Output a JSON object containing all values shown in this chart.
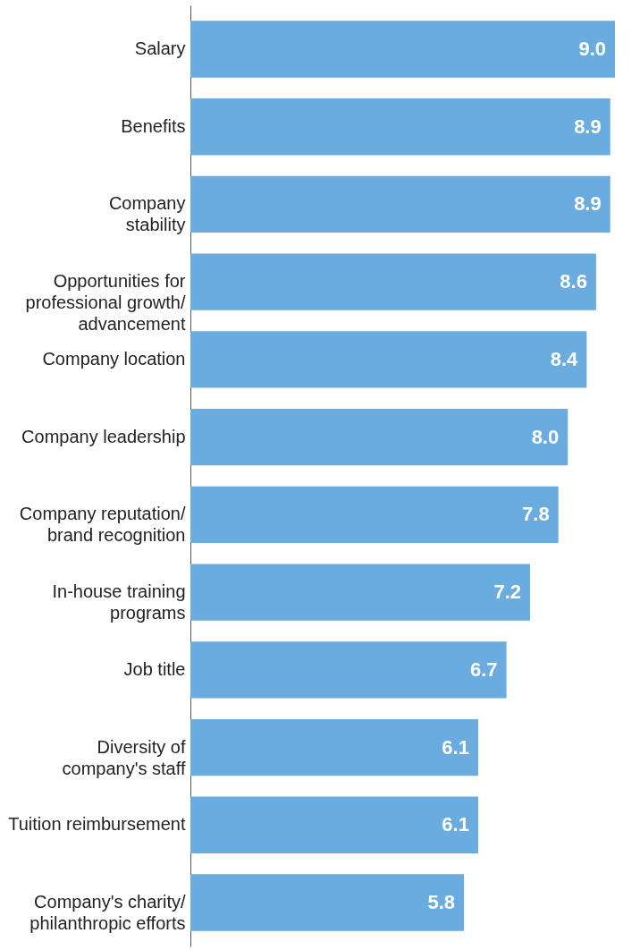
{
  "chart_data": {
    "type": "bar",
    "orientation": "horizontal",
    "categories": [
      "Salary",
      "Benefits",
      "Company\nstability",
      "Opportunities for\nprofessional growth/\nadvancement",
      "Company location",
      "Company leadership",
      "Company reputation/\nbrand recognition",
      "In-house training\nprograms",
      "Job title",
      "Diversity of\ncompany's staff",
      "Tuition reimbursement",
      "Company's charity/\nphilanthropic efforts"
    ],
    "values": [
      9.0,
      8.9,
      8.9,
      8.6,
      8.4,
      8.0,
      7.8,
      7.2,
      6.7,
      6.1,
      6.1,
      5.8
    ],
    "value_labels": [
      "9.0",
      "8.9",
      "8.9",
      "8.6",
      "8.4",
      "8.0",
      "7.8",
      "7.2",
      "6.7",
      "6.1",
      "6.1",
      "5.8"
    ],
    "color": "#6aacdf"
  }
}
